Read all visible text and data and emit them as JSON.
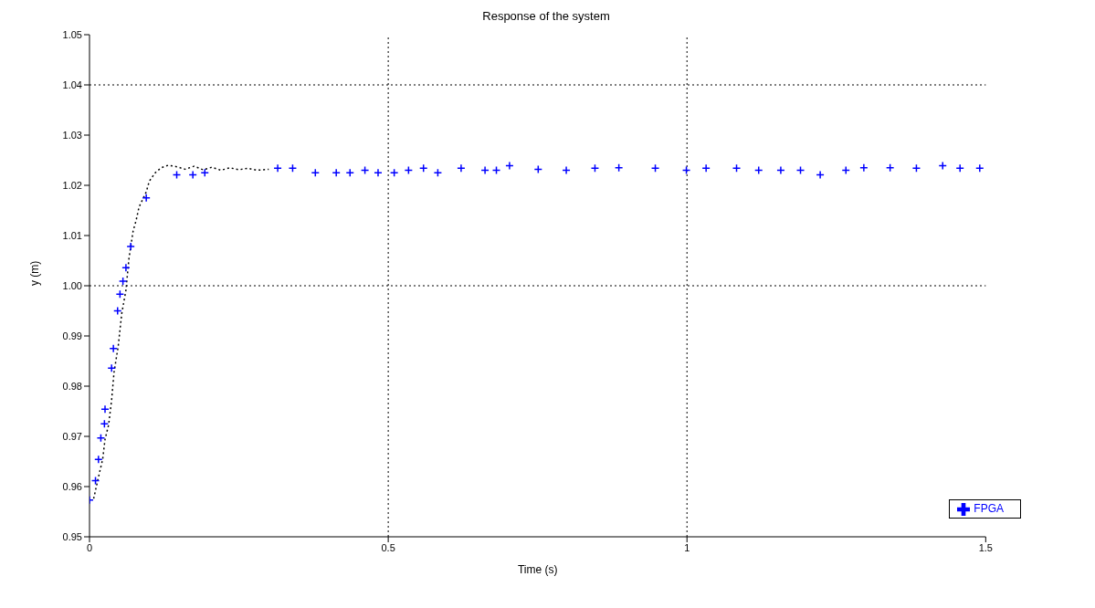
{
  "chart_data": {
    "type": "line",
    "title": "Response of the system",
    "xlabel": "Time (s)",
    "ylabel": "y (m)",
    "xlim": [
      0,
      1.5
    ],
    "xticks": [
      0,
      0.5,
      1,
      1.5
    ],
    "ylim": [
      0.95,
      1.05
    ],
    "yticks": [
      0.95,
      0.96,
      0.97,
      0.98,
      0.99,
      {
        "value": 1,
        "label": "1.00"
      },
      1.01,
      1.02,
      1.03,
      1.04,
      1.05
    ],
    "ref_lines": [
      {
        "axis": "x",
        "value": 0.5,
        "color": "#000000",
        "line_style": "dotted"
      },
      {
        "axis": "x",
        "value": 1,
        "color": "#000000",
        "line_style": "dotted"
      },
      {
        "axis": "y",
        "value": 1.0,
        "color": "#000000",
        "line_style": "dotted"
      },
      {
        "axis": "y",
        "value": 1.04,
        "color": "#000000",
        "line_style": "dotted"
      }
    ],
    "legend": "bottom right",
    "series": [
      {
        "color": "#000000",
        "line_style": "dotted",
        "marker": "none",
        "x": [
          0.007,
          0.015,
          0.022,
          0.026,
          0.032,
          0.037,
          0.041,
          0.048,
          0.054,
          0.061,
          0.066,
          0.073,
          0.078,
          0.083,
          0.095,
          0.1,
          0.11,
          0.12,
          0.132,
          0.146,
          0.16,
          0.175,
          0.19,
          0.205,
          0.22,
          0.235,
          0.25,
          0.265,
          0.28,
          0.3
        ],
        "values": [
          0.9576,
          0.9619,
          0.9654,
          0.9694,
          0.9723,
          0.9772,
          0.9827,
          0.9879,
          0.9945,
          0.9991,
          1.0054,
          1.0109,
          1.013,
          1.0157,
          1.0187,
          1.0208,
          1.0225,
          1.0235,
          1.024,
          1.0237,
          1.0232,
          1.0238,
          1.0231,
          1.0236,
          1.023,
          1.0235,
          1.0231,
          1.0234,
          1.023,
          1.0232
        ]
      },
      {
        "type": "scatter",
        "name": "FPGA",
        "color": "#0000ff",
        "marker": "cross",
        "x": [
          0.0,
          0.01,
          0.015,
          0.019,
          0.025,
          0.026,
          0.037,
          0.04,
          0.047,
          0.051,
          0.056,
          0.061,
          0.069,
          0.095,
          0.146,
          0.173,
          0.193,
          0.315,
          0.34,
          0.378,
          0.413,
          0.436,
          0.461,
          0.483,
          0.51,
          0.534,
          0.559,
          0.583,
          0.622,
          0.662,
          0.681,
          0.703,
          0.751,
          0.798,
          0.846,
          0.886,
          0.947,
          0.999,
          1.032,
          1.083,
          1.12,
          1.157,
          1.19,
          1.223,
          1.266,
          1.296,
          1.34,
          1.384,
          1.428,
          1.457,
          1.49
        ],
        "values": [
          0.9573,
          0.9612,
          0.9654,
          0.9697,
          0.9725,
          0.9754,
          0.9836,
          0.9875,
          0.995,
          0.9983,
          1.0009,
          1.0036,
          1.0078,
          1.0175,
          1.0221,
          1.0221,
          1.0225,
          1.0234,
          1.0234,
          1.0225,
          1.0225,
          1.0225,
          1.023,
          1.0225,
          1.0225,
          1.023,
          1.0234,
          1.0225,
          1.0234,
          1.023,
          1.023,
          1.0239,
          1.0232,
          1.023,
          1.0234,
          1.0235,
          1.0234,
          1.023,
          1.0234,
          1.0234,
          1.023,
          1.023,
          1.023,
          1.0221,
          1.023,
          1.0235,
          1.0235,
          1.0234,
          1.0239,
          1.0234,
          1.0234
        ]
      }
    ]
  }
}
